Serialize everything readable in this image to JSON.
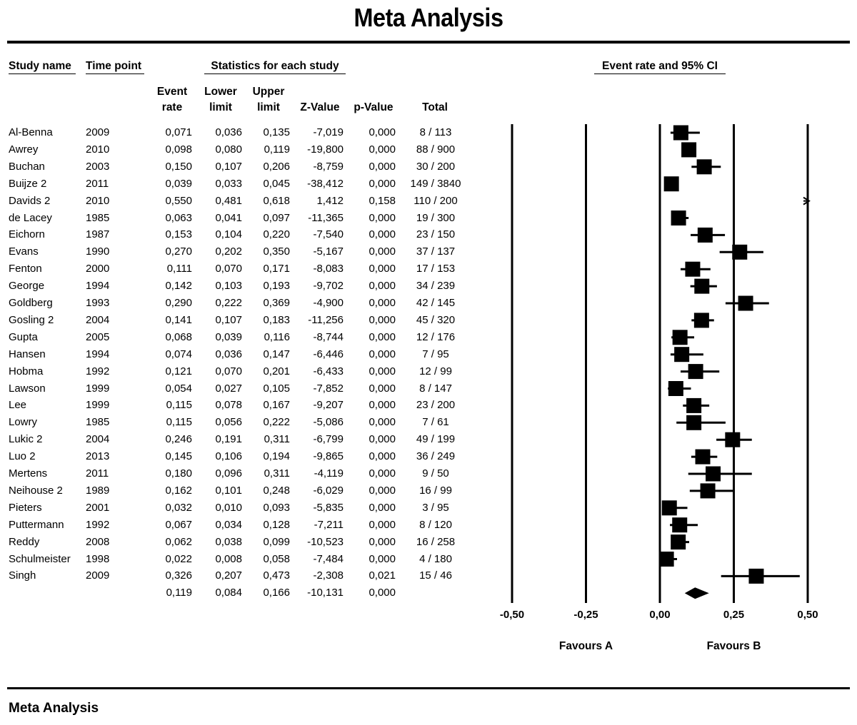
{
  "title": "Meta Analysis",
  "footer_title": "Meta Analysis",
  "headers": {
    "study_name": "Study name",
    "time_point": "Time point",
    "statistics": "Statistics for each study",
    "ci": "Event rate and 95% CI"
  },
  "columns": {
    "event_rate": [
      "Event",
      "rate"
    ],
    "lower": [
      "Lower",
      "limit"
    ],
    "upper": [
      "Upper",
      "limit"
    ],
    "z": "Z-Value",
    "p": "p-Value",
    "total": "Total"
  },
  "favours": {
    "a": "Favours A",
    "b": "Favours B"
  },
  "chart_data": {
    "type": "forest",
    "xlim": [
      -0.5,
      0.5
    ],
    "xticks": [
      -0.5,
      -0.25,
      0.0,
      0.25,
      0.5
    ],
    "xtick_labels": [
      "-0,50",
      "-0,25",
      "0,00",
      "0,25",
      "0,50"
    ],
    "rows": [
      {
        "study": "Al-Benna",
        "time": "2009",
        "rate": "0,071",
        "lower": "0,036",
        "upper": "0,135",
        "z": "-7,019",
        "p": "0,000",
        "total": "8 / 113",
        "v": 0.071,
        "lo": 0.036,
        "hi": 0.135
      },
      {
        "study": "Awrey",
        "time": "2010",
        "rate": "0,098",
        "lower": "0,080",
        "upper": "0,119",
        "z": "-19,800",
        "p": "0,000",
        "total": "88 / 900",
        "v": 0.098,
        "lo": 0.08,
        "hi": 0.119
      },
      {
        "study": "Buchan",
        "time": "2003",
        "rate": "0,150",
        "lower": "0,107",
        "upper": "0,206",
        "z": "-8,759",
        "p": "0,000",
        "total": "30 / 200",
        "v": 0.15,
        "lo": 0.107,
        "hi": 0.206
      },
      {
        "study": "Buijze 2",
        "time": "2011",
        "rate": "0,039",
        "lower": "0,033",
        "upper": "0,045",
        "z": "-38,412",
        "p": "0,000",
        "total": "149 / 3840",
        "v": 0.039,
        "lo": 0.033,
        "hi": 0.045
      },
      {
        "study": "Davids 2",
        "time": "2010",
        "rate": "0,550",
        "lower": "0,481",
        "upper": "0,618",
        "z": "1,412",
        "p": "0,158",
        "total": "110 / 200",
        "v": 0.55,
        "lo": 0.481,
        "hi": 0.618
      },
      {
        "study": "de Lacey",
        "time": "1985",
        "rate": "0,063",
        "lower": "0,041",
        "upper": "0,097",
        "z": "-11,365",
        "p": "0,000",
        "total": "19 / 300",
        "v": 0.063,
        "lo": 0.041,
        "hi": 0.097
      },
      {
        "study": "Eichorn",
        "time": "1987",
        "rate": "0,153",
        "lower": "0,104",
        "upper": "0,220",
        "z": "-7,540",
        "p": "0,000",
        "total": "23 / 150",
        "v": 0.153,
        "lo": 0.104,
        "hi": 0.22
      },
      {
        "study": "Evans",
        "time": "1990",
        "rate": "0,270",
        "lower": "0,202",
        "upper": "0,350",
        "z": "-5,167",
        "p": "0,000",
        "total": "37 / 137",
        "v": 0.27,
        "lo": 0.202,
        "hi": 0.35
      },
      {
        "study": "Fenton",
        "time": "2000",
        "rate": "0,111",
        "lower": "0,070",
        "upper": "0,171",
        "z": "-8,083",
        "p": "0,000",
        "total": "17 / 153",
        "v": 0.111,
        "lo": 0.07,
        "hi": 0.171
      },
      {
        "study": "George",
        "time": "1994",
        "rate": "0,142",
        "lower": "0,103",
        "upper": "0,193",
        "z": "-9,702",
        "p": "0,000",
        "total": "34 / 239",
        "v": 0.142,
        "lo": 0.103,
        "hi": 0.193
      },
      {
        "study": "Goldberg",
        "time": "1993",
        "rate": "0,290",
        "lower": "0,222",
        "upper": "0,369",
        "z": "-4,900",
        "p": "0,000",
        "total": "42 / 145",
        "v": 0.29,
        "lo": 0.222,
        "hi": 0.369
      },
      {
        "study": "Gosling 2",
        "time": "2004",
        "rate": "0,141",
        "lower": "0,107",
        "upper": "0,183",
        "z": "-11,256",
        "p": "0,000",
        "total": "45 / 320",
        "v": 0.141,
        "lo": 0.107,
        "hi": 0.183
      },
      {
        "study": "Gupta",
        "time": "2005",
        "rate": "0,068",
        "lower": "0,039",
        "upper": "0,116",
        "z": "-8,744",
        "p": "0,000",
        "total": "12 / 176",
        "v": 0.068,
        "lo": 0.039,
        "hi": 0.116
      },
      {
        "study": "Hansen",
        "time": "1994",
        "rate": "0,074",
        "lower": "0,036",
        "upper": "0,147",
        "z": "-6,446",
        "p": "0,000",
        "total": "7 / 95",
        "v": 0.074,
        "lo": 0.036,
        "hi": 0.147
      },
      {
        "study": "Hobma",
        "time": "1992",
        "rate": "0,121",
        "lower": "0,070",
        "upper": "0,201",
        "z": "-6,433",
        "p": "0,000",
        "total": "12 / 99",
        "v": 0.121,
        "lo": 0.07,
        "hi": 0.201
      },
      {
        "study": "Lawson",
        "time": "1999",
        "rate": "0,054",
        "lower": "0,027",
        "upper": "0,105",
        "z": "-7,852",
        "p": "0,000",
        "total": "8 / 147",
        "v": 0.054,
        "lo": 0.027,
        "hi": 0.105
      },
      {
        "study": "Lee",
        "time": "1999",
        "rate": "0,115",
        "lower": "0,078",
        "upper": "0,167",
        "z": "-9,207",
        "p": "0,000",
        "total": "23 / 200",
        "v": 0.115,
        "lo": 0.078,
        "hi": 0.167
      },
      {
        "study": "Lowry",
        "time": "1985",
        "rate": "0,115",
        "lower": "0,056",
        "upper": "0,222",
        "z": "-5,086",
        "p": "0,000",
        "total": "7 / 61",
        "v": 0.115,
        "lo": 0.056,
        "hi": 0.222
      },
      {
        "study": "Lukic 2",
        "time": "2004",
        "rate": "0,246",
        "lower": "0,191",
        "upper": "0,311",
        "z": "-6,799",
        "p": "0,000",
        "total": "49 / 199",
        "v": 0.246,
        "lo": 0.191,
        "hi": 0.311
      },
      {
        "study": "Luo 2",
        "time": "2013",
        "rate": "0,145",
        "lower": "0,106",
        "upper": "0,194",
        "z": "-9,865",
        "p": "0,000",
        "total": "36 / 249",
        "v": 0.145,
        "lo": 0.106,
        "hi": 0.194
      },
      {
        "study": "Mertens",
        "time": "2011",
        "rate": "0,180",
        "lower": "0,096",
        "upper": "0,311",
        "z": "-4,119",
        "p": "0,000",
        "total": "9 / 50",
        "v": 0.18,
        "lo": 0.096,
        "hi": 0.311
      },
      {
        "study": "Neihouse 2",
        "time": "1989",
        "rate": "0,162",
        "lower": "0,101",
        "upper": "0,248",
        "z": "-6,029",
        "p": "0,000",
        "total": "16 / 99",
        "v": 0.162,
        "lo": 0.101,
        "hi": 0.248
      },
      {
        "study": "Pieters",
        "time": "2001",
        "rate": "0,032",
        "lower": "0,010",
        "upper": "0,093",
        "z": "-5,835",
        "p": "0,000",
        "total": "3 / 95",
        "v": 0.032,
        "lo": 0.01,
        "hi": 0.093
      },
      {
        "study": "Puttermann",
        "time": "1992",
        "rate": "0,067",
        "lower": "0,034",
        "upper": "0,128",
        "z": "-7,211",
        "p": "0,000",
        "total": "8 / 120",
        "v": 0.067,
        "lo": 0.034,
        "hi": 0.128
      },
      {
        "study": "Reddy",
        "time": "2008",
        "rate": "0,062",
        "lower": "0,038",
        "upper": "0,099",
        "z": "-10,523",
        "p": "0,000",
        "total": "16 / 258",
        "v": 0.062,
        "lo": 0.038,
        "hi": 0.099
      },
      {
        "study": "Schulmeister",
        "time": "1998",
        "rate": "0,022",
        "lower": "0,008",
        "upper": "0,058",
        "z": "-7,484",
        "p": "0,000",
        "total": "4 / 180",
        "v": 0.022,
        "lo": 0.008,
        "hi": 0.058
      },
      {
        "study": "Singh",
        "time": "2009",
        "rate": "0,326",
        "lower": "0,207",
        "upper": "0,473",
        "z": "-2,308",
        "p": "0,021",
        "total": "15 / 46",
        "v": 0.326,
        "lo": 0.207,
        "hi": 0.473
      }
    ],
    "summary": {
      "rate": "0,119",
      "lower": "0,084",
      "upper": "0,166",
      "z": "-10,131",
      "p": "0,000",
      "v": 0.119,
      "lo": 0.084,
      "hi": 0.166
    }
  }
}
